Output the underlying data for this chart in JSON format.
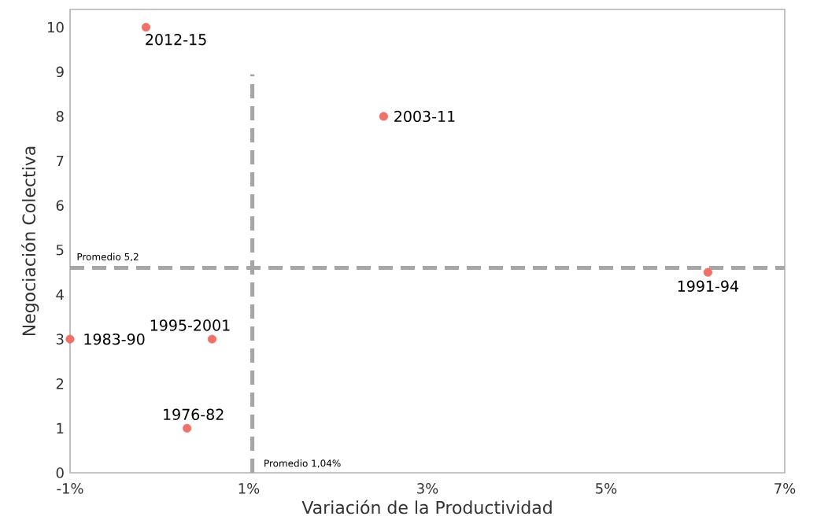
{
  "chart_data": {
    "type": "scatter",
    "xlabel": "Variación de la Productividad",
    "ylabel": "Negociación  Colectiva",
    "x": [
      -0.15,
      2.51,
      6.14,
      -1,
      0.59,
      0.31
    ],
    "values": [
      10,
      8,
      4.5,
      3,
      3,
      1
    ],
    "color": "#f0716a",
    "marker": "circle",
    "grid": false,
    "xlim": [
      -1,
      7
    ],
    "ylim": [
      0,
      10.4
    ],
    "xticks": [
      {
        "value": -1,
        "label": "-1%"
      },
      {
        "value": 1,
        "label": "1%"
      },
      {
        "value": 3,
        "label": "3%"
      },
      {
        "value": 5,
        "label": "5%"
      },
      {
        "value": 7,
        "label": "7%"
      }
    ],
    "yticks": [
      0,
      1,
      2,
      3,
      4,
      5,
      6,
      7,
      8,
      9,
      10
    ],
    "ref_lines": [
      {
        "axis": "y",
        "value": 4.6,
        "label": "Promedio 5,2",
        "color": "#a6a6a6",
        "line_style": "dashed"
      },
      {
        "axis": "x",
        "value": 1.04,
        "label": "Promedio 1,04%",
        "color": "#a6a6a6",
        "line_style": "dashed"
      }
    ],
    "annotations": [
      {
        "text": "2012-15",
        "x": -0.15,
        "y": 10
      },
      {
        "text": "2003-11",
        "x": 2.51,
        "y": 8
      },
      {
        "text": "1991-94",
        "x": 6.14,
        "y": 4.5
      },
      {
        "text": "1983-90",
        "x": -1,
        "y": 3
      },
      {
        "text": "1995-2001",
        "x": 0.59,
        "y": 3
      },
      {
        "text": "1976-82",
        "x": 0.31,
        "y": 1
      }
    ]
  }
}
